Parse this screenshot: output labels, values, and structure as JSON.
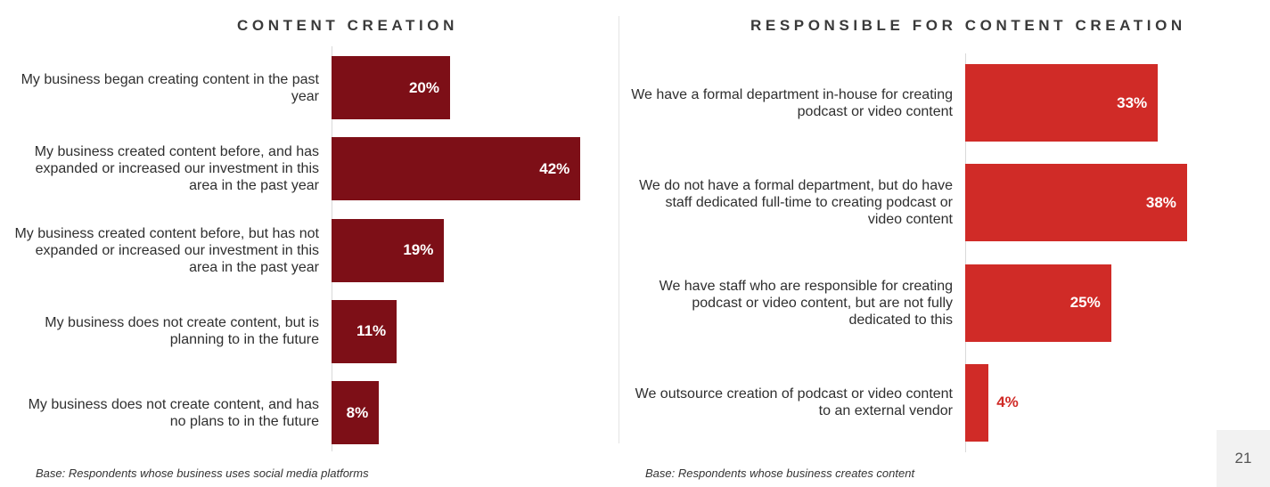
{
  "chart_data": [
    {
      "type": "bar",
      "orientation": "horizontal",
      "title": "CONTENT CREATION",
      "categories": [
        "My business began creating content in the past year",
        "My business created content before, and has expanded or increased our investment in this area in the past year",
        "My business created content before, but has not expanded or increased our investment in this area in the past year",
        "My business does not create content, but is planning to in the future",
        "My business does not create content, and has no plans to in the future"
      ],
      "values": [
        20,
        42,
        19,
        11,
        8
      ],
      "value_labels": [
        "20%",
        "42%",
        "19%",
        "11%",
        "8%"
      ],
      "unit": "%",
      "xlim": [
        0,
        100
      ],
      "bar_color": "#7d0f17",
      "grid": false,
      "legend": "none",
      "footnote": "Base: Respondents whose business uses social media platforms"
    },
    {
      "type": "bar",
      "orientation": "horizontal",
      "title": "RESPONSIBLE FOR CONTENT CREATION",
      "categories": [
        "We have a formal department in-house for creating podcast or video content",
        "We do not have a formal department, but do have staff dedicated full-time to creating podcast or video content",
        "We have staff who are responsible for creating podcast or video content, but are not fully dedicated to this",
        "We outsource creation of podcast or video content to an external vendor"
      ],
      "values": [
        33,
        38,
        25,
        4
      ],
      "value_labels": [
        "33%",
        "38%",
        "25%",
        "4%"
      ],
      "unit": "%",
      "xlim": [
        0,
        100
      ],
      "bar_color": "#d02b27",
      "grid": false,
      "legend": "none",
      "footnote": "Base: Respondents whose business creates content"
    }
  ],
  "page_number": "21"
}
